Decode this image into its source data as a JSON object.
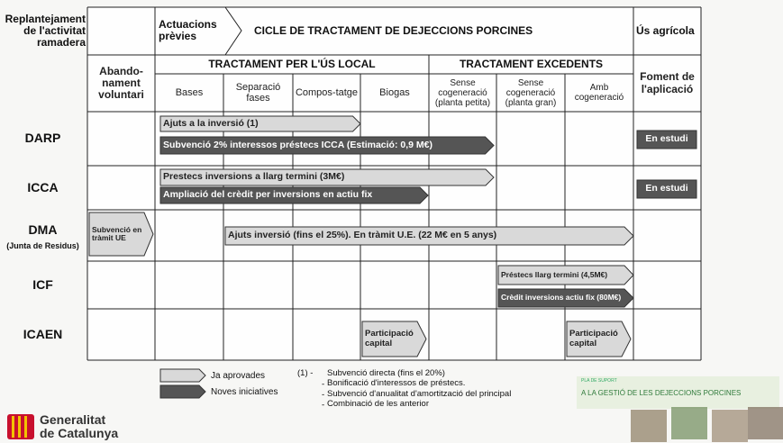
{
  "header": {
    "replantejament": "Replantejament de l'activitat ramadera",
    "actuacions": "Actuacions prèvies",
    "cicle": "CICLE DE TRACTAMENT DE DEJECCIONS PORCINES",
    "us_agricola": "Ús agrícola"
  },
  "groups": [
    "TRACTAMENT PER L'ÚS LOCAL",
    "TRACTAMENT EXCEDENTS"
  ],
  "columns": [
    "Abando-nament voluntari",
    "Bases",
    "Separació fases",
    "Compos-tatge",
    "Biogas",
    "Sense cogeneració (planta petita)",
    "Sense cogeneració (planta gran)",
    "Amb cogeneració",
    "Foment de l'aplicació"
  ],
  "rows": [
    {
      "label": "DARP"
    },
    {
      "label": "ICCA"
    },
    {
      "label": "DMA",
      "sublabel": "(Junta de Residus)"
    },
    {
      "label": "ICF"
    },
    {
      "label": "ICAEN"
    }
  ],
  "arrows": [
    "Ajuts a la inversió (1)",
    "Subvenció 2% interessos préstecs ICCA (Estimació: 0,9 M€)",
    "Prestecs inversions a llarg termini (3M€)",
    "Ampliació del crèdit per inversions en actiu fix",
    "Subvenció en tràmit UE",
    "Ajuts inversió (fins el 25%). En tràmit U.E. (22 M€ en 5 anys)",
    "Préstecs llarg termini (4,5M€)",
    "Crèdit inversions actiu fix (80M€)",
    "Participació capital",
    "Participació capital"
  ],
  "status": [
    "En estudi",
    "En estudi"
  ],
  "legend": [
    "Ja aprovades",
    "Noves iniciatives"
  ],
  "note": {
    "marker": "(1) -",
    "lines": [
      "Subvenció directa (fins el 20%)",
      "Bonificació d'interessos de préstecs.",
      "Subvenció d'anualitat d'amortització del principal",
      "Combinació de les anterior"
    ]
  },
  "footer": {
    "logo": "Generalitat de Catalunya",
    "plan_small": "PLA DE SUPORT",
    "plan": "A LA GESTIÓ DE LES DEJECCIONS PORCINES"
  }
}
